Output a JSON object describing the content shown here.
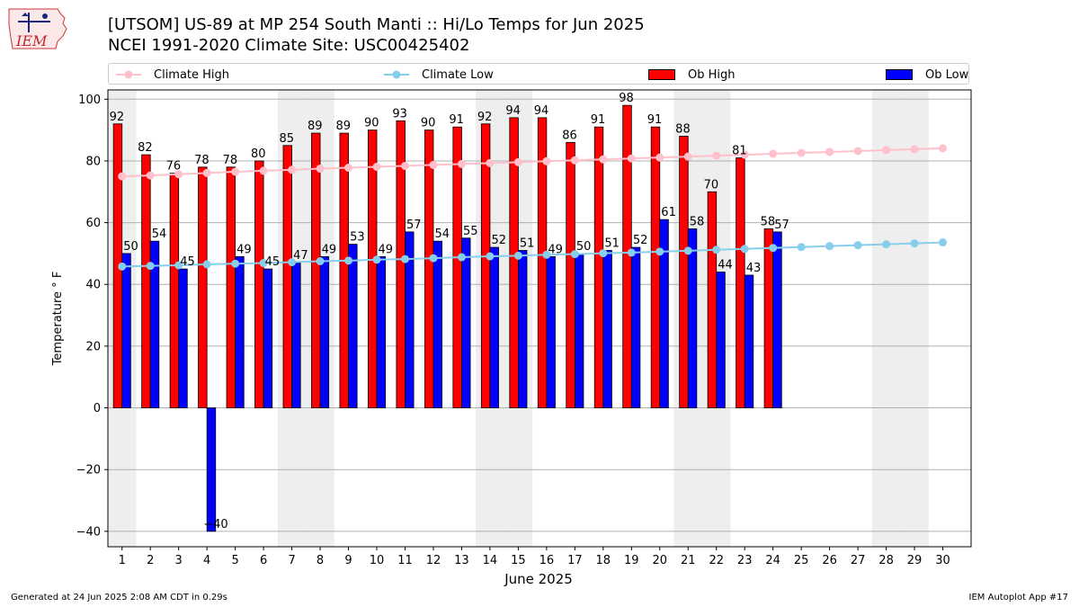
{
  "title_line1": "[UTSOM] US-89 at MP 254 South Manti  :: Hi/Lo Temps for Jun 2025",
  "title_line2": "NCEI 1991-2020 Climate Site: USC00425402",
  "logo_text": "IEM",
  "footer_left": "Generated at 24 Jun 2025 2:08 AM CDT in 0.29s",
  "footer_right": "IEM Autoplot App #17",
  "legend": {
    "climate_high": "Climate High",
    "climate_low": "Climate Low",
    "ob_high": "Ob High",
    "ob_low": "Ob Low"
  },
  "colors": {
    "ob_high": "#ff0000",
    "ob_low": "#0000ff",
    "climate_high": "#ffc0cb",
    "climate_low": "#87ceeb",
    "weekend_band": "#eeeeee",
    "grid": "#b0b0b0"
  },
  "chart_data": {
    "type": "bar",
    "xlabel": "June 2025",
    "ylabel": "Temperature ° F",
    "ylim": [
      -45,
      103
    ],
    "yticks": [
      -40,
      -20,
      0,
      20,
      40,
      60,
      80,
      100
    ],
    "grid": true,
    "legend_placement": "top",
    "days": [
      1,
      2,
      3,
      4,
      5,
      6,
      7,
      8,
      9,
      10,
      11,
      12,
      13,
      14,
      15,
      16,
      17,
      18,
      19,
      20,
      21,
      22,
      23,
      24,
      25,
      26,
      27,
      28,
      29,
      30
    ],
    "weekend_days": [
      1,
      7,
      8,
      14,
      15,
      21,
      22,
      28,
      29
    ],
    "series": [
      {
        "name": "Ob High",
        "kind": "bar",
        "values": [
          92,
          82,
          76,
          78,
          78,
          80,
          85,
          89,
          89,
          90,
          93,
          90,
          91,
          92,
          94,
          94,
          86,
          91,
          98,
          91,
          88,
          70,
          81,
          58
        ]
      },
      {
        "name": "Ob Low",
        "kind": "bar",
        "values": [
          50,
          54,
          45,
          -40,
          49,
          45,
          47,
          49,
          53,
          49,
          57,
          54,
          55,
          52,
          51,
          49,
          50,
          51,
          52,
          61,
          58,
          44,
          43,
          57
        ]
      },
      {
        "name": "Climate High",
        "kind": "line",
        "values": [
          75.0,
          75.3,
          75.7,
          76.1,
          76.5,
          76.8,
          77.1,
          77.5,
          77.8,
          78.1,
          78.4,
          78.7,
          79.0,
          79.3,
          79.6,
          79.9,
          80.2,
          80.5,
          80.8,
          81.1,
          81.4,
          81.7,
          82.0,
          82.3,
          82.6,
          82.9,
          83.2,
          83.5,
          83.8,
          84.1
        ]
      },
      {
        "name": "Climate Low",
        "kind": "line",
        "values": [
          45.8,
          46.0,
          46.2,
          46.5,
          46.7,
          46.9,
          47.2,
          47.5,
          47.7,
          48.0,
          48.2,
          48.5,
          48.8,
          49.1,
          49.3,
          49.6,
          49.8,
          50.1,
          50.3,
          50.6,
          50.9,
          51.2,
          51.5,
          51.8,
          52.1,
          52.4,
          52.7,
          53.0,
          53.3,
          53.6
        ]
      }
    ]
  }
}
